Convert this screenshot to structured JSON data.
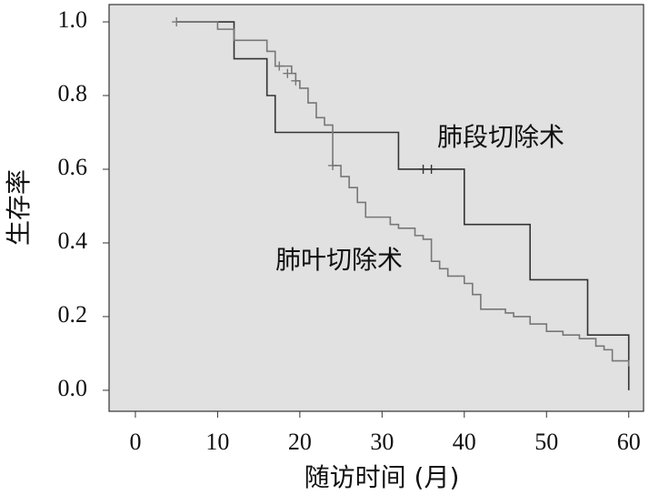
{
  "chart_data": {
    "type": "step",
    "x_label": "随访时间 (月)",
    "y_label": "生存率",
    "xlim": [
      -3.2,
      61.8
    ],
    "ylim": [
      -0.057,
      1.047
    ],
    "xticks": [
      0,
      10,
      20,
      30,
      40,
      50,
      60
    ],
    "yticks": [
      {
        "value": 0,
        "label": "0.0"
      },
      {
        "value": 0.2,
        "label": "0.2"
      },
      {
        "value": 0.4,
        "label": "0.4"
      },
      {
        "value": 0.6,
        "label": "0.6"
      },
      {
        "value": 0.8,
        "label": "0.8"
      },
      {
        "value": 1,
        "label": "1.0"
      }
    ],
    "series": [
      {
        "name": "肺段切除术",
        "color": "#333333",
        "x": [
          5,
          12,
          16,
          17,
          32,
          40,
          48,
          55,
          60
        ],
        "values": [
          1.0,
          0.9,
          0.8,
          0.7,
          0.6,
          0.45,
          0.3,
          0.15,
          0.0
        ],
        "censor_x": [
          35,
          36
        ],
        "censor_values": [
          0.6,
          0.6
        ]
      },
      {
        "name": "肺叶切除术",
        "color": "#777777",
        "x": [
          5,
          10,
          12,
          16,
          17,
          19,
          19.5,
          20,
          21,
          22,
          23,
          24,
          25,
          26,
          27,
          28,
          31,
          32,
          34,
          35,
          36,
          37,
          38,
          40,
          41,
          42,
          45,
          46,
          48,
          50,
          52,
          54,
          56,
          57,
          58,
          60
        ],
        "values": [
          1.0,
          0.98,
          0.95,
          0.92,
          0.88,
          0.86,
          0.84,
          0.82,
          0.78,
          0.74,
          0.72,
          0.61,
          0.58,
          0.55,
          0.51,
          0.47,
          0.45,
          0.44,
          0.42,
          0.41,
          0.35,
          0.33,
          0.31,
          0.29,
          0.26,
          0.22,
          0.21,
          0.2,
          0.18,
          0.16,
          0.15,
          0.14,
          0.12,
          0.11,
          0.08,
          0.065
        ],
        "censor_x": [
          5,
          17.5,
          18.5,
          19.5,
          24
        ],
        "censor_values": [
          1.0,
          0.88,
          0.86,
          0.84,
          0.61
        ]
      }
    ]
  }
}
